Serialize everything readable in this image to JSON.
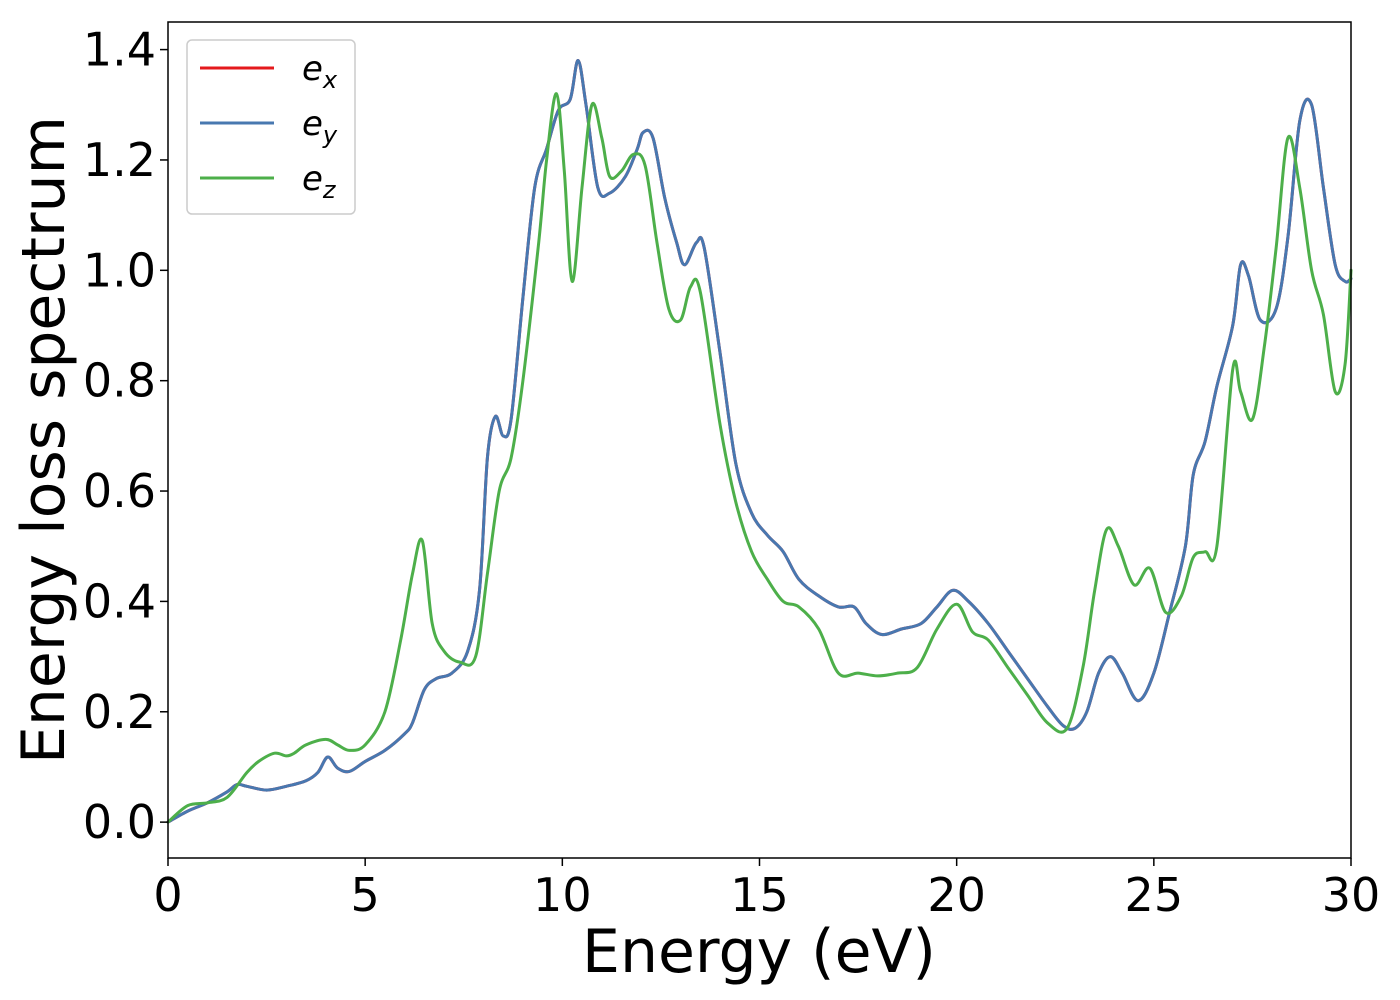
{
  "chart_data": {
    "type": "line",
    "xlabel": "Energy (eV)",
    "ylabel": "Energy loss spectrum",
    "xlim": [
      0,
      30
    ],
    "ylim": [
      -0.065,
      1.45
    ],
    "xticks": [
      0,
      5,
      10,
      15,
      20,
      25,
      30
    ],
    "yticks": [
      0.0,
      0.2,
      0.4,
      0.6,
      0.8,
      1.0,
      1.2,
      1.4
    ],
    "xtick_labels": [
      "0",
      "5",
      "10",
      "15",
      "20",
      "25",
      "30"
    ],
    "ytick_labels": [
      "0.0",
      "0.2",
      "0.4",
      "0.6",
      "0.8",
      "1.0",
      "1.2",
      "1.4"
    ],
    "grid": false,
    "legend_position": "top-left",
    "series": [
      {
        "name": "e",
        "sub": "x",
        "color": "#e41a1c",
        "x": [
          0,
          0.5,
          1,
          1.5,
          1.75,
          2,
          2.5,
          3,
          3.5,
          3.8,
          4.05,
          4.3,
          4.6,
          5,
          5.5,
          6,
          6.2,
          6.5,
          6.8,
          7.2,
          7.6,
          7.9,
          8.1,
          8.3,
          8.5,
          8.7,
          9,
          9.3,
          9.6,
          9.9,
          10.2,
          10.4,
          10.6,
          10.9,
          11.2,
          11.6,
          11.9,
          12.05,
          12.3,
          12.6,
          12.9,
          13.1,
          13.4,
          13.6,
          14,
          14.4,
          14.8,
          15.2,
          15.6,
          16,
          16.5,
          17,
          17.4,
          17.7,
          18.1,
          18.6,
          19.1,
          19.5,
          19.9,
          20.3,
          20.8,
          21.3,
          21.8,
          22.3,
          22.7,
          23,
          23.3,
          23.6,
          23.9,
          24.2,
          24.6,
          25,
          25.4,
          25.8,
          26,
          26.3,
          26.6,
          27,
          27.2,
          27.4,
          27.7,
          28.1,
          28.4,
          28.7,
          29,
          29.3,
          29.6,
          29.85,
          30
        ],
        "y": [
          0,
          0.02,
          0.035,
          0.055,
          0.068,
          0.065,
          0.058,
          0.065,
          0.075,
          0.09,
          0.118,
          0.098,
          0.092,
          0.11,
          0.13,
          0.16,
          0.18,
          0.24,
          0.26,
          0.27,
          0.31,
          0.42,
          0.66,
          0.735,
          0.7,
          0.73,
          0.95,
          1.15,
          1.22,
          1.29,
          1.31,
          1.38,
          1.3,
          1.15,
          1.14,
          1.17,
          1.22,
          1.25,
          1.24,
          1.13,
          1.05,
          1.01,
          1.05,
          1.04,
          0.85,
          0.65,
          0.56,
          0.52,
          0.49,
          0.44,
          0.41,
          0.39,
          0.39,
          0.36,
          0.34,
          0.35,
          0.36,
          0.39,
          0.42,
          0.4,
          0.36,
          0.31,
          0.26,
          0.21,
          0.175,
          0.17,
          0.2,
          0.27,
          0.3,
          0.27,
          0.22,
          0.27,
          0.38,
          0.5,
          0.63,
          0.69,
          0.79,
          0.9,
          1.01,
          0.99,
          0.91,
          0.93,
          1.06,
          1.27,
          1.3,
          1.15,
          1.01,
          0.98,
          0.985
        ]
      },
      {
        "name": "e",
        "sub": "y",
        "color": "#4878b0",
        "x": [
          0,
          0.5,
          1,
          1.5,
          1.75,
          2,
          2.5,
          3,
          3.5,
          3.8,
          4.05,
          4.3,
          4.6,
          5,
          5.5,
          6,
          6.2,
          6.5,
          6.8,
          7.2,
          7.6,
          7.9,
          8.1,
          8.3,
          8.5,
          8.7,
          9,
          9.3,
          9.6,
          9.9,
          10.2,
          10.4,
          10.6,
          10.9,
          11.2,
          11.6,
          11.9,
          12.05,
          12.3,
          12.6,
          12.9,
          13.1,
          13.4,
          13.6,
          14,
          14.4,
          14.8,
          15.2,
          15.6,
          16,
          16.5,
          17,
          17.4,
          17.7,
          18.1,
          18.6,
          19.1,
          19.5,
          19.9,
          20.3,
          20.8,
          21.3,
          21.8,
          22.3,
          22.7,
          23,
          23.3,
          23.6,
          23.9,
          24.2,
          24.6,
          25,
          25.4,
          25.8,
          26,
          26.3,
          26.6,
          27,
          27.2,
          27.4,
          27.7,
          28.1,
          28.4,
          28.7,
          29,
          29.3,
          29.6,
          29.85,
          30
        ],
        "y": [
          0,
          0.02,
          0.035,
          0.055,
          0.068,
          0.065,
          0.058,
          0.065,
          0.075,
          0.09,
          0.118,
          0.098,
          0.092,
          0.11,
          0.13,
          0.16,
          0.18,
          0.24,
          0.26,
          0.27,
          0.31,
          0.42,
          0.66,
          0.735,
          0.7,
          0.73,
          0.95,
          1.15,
          1.22,
          1.29,
          1.31,
          1.38,
          1.3,
          1.15,
          1.14,
          1.17,
          1.22,
          1.25,
          1.24,
          1.13,
          1.05,
          1.01,
          1.05,
          1.04,
          0.85,
          0.65,
          0.56,
          0.52,
          0.49,
          0.44,
          0.41,
          0.39,
          0.39,
          0.36,
          0.34,
          0.35,
          0.36,
          0.39,
          0.42,
          0.4,
          0.36,
          0.31,
          0.26,
          0.21,
          0.175,
          0.17,
          0.2,
          0.27,
          0.3,
          0.27,
          0.22,
          0.27,
          0.38,
          0.5,
          0.63,
          0.69,
          0.79,
          0.9,
          1.01,
          0.99,
          0.91,
          0.93,
          1.06,
          1.27,
          1.3,
          1.15,
          1.01,
          0.98,
          0.985
        ]
      },
      {
        "name": "e",
        "sub": "z",
        "color": "#4daf4a",
        "x": [
          0,
          0.5,
          1,
          1.5,
          2,
          2.3,
          2.7,
          3,
          3.2,
          3.5,
          4,
          4.3,
          4.6,
          5,
          5.5,
          5.9,
          6.2,
          6.45,
          6.7,
          7,
          7.4,
          7.8,
          8.1,
          8.4,
          8.7,
          9,
          9.4,
          9.6,
          9.85,
          10.05,
          10.25,
          10.5,
          10.75,
          11,
          11.2,
          11.5,
          11.8,
          12.1,
          12.4,
          12.7,
          13,
          13.25,
          13.5,
          14,
          14.4,
          14.8,
          15.2,
          15.6,
          16,
          16.5,
          17,
          17.5,
          18,
          18.5,
          19,
          19.5,
          20,
          20.4,
          20.8,
          21.3,
          21.8,
          22.3,
          22.8,
          23.2,
          23.5,
          23.8,
          24.1,
          24.5,
          24.9,
          25.3,
          25.7,
          26,
          26.3,
          26.6,
          27,
          27.2,
          27.5,
          27.8,
          28.1,
          28.4,
          28.7,
          29,
          29.3,
          29.6,
          29.85,
          30
        ],
        "y": [
          0,
          0.03,
          0.035,
          0.045,
          0.09,
          0.11,
          0.125,
          0.12,
          0.125,
          0.14,
          0.15,
          0.14,
          0.13,
          0.14,
          0.2,
          0.33,
          0.45,
          0.51,
          0.36,
          0.31,
          0.29,
          0.3,
          0.45,
          0.6,
          0.66,
          0.8,
          1.05,
          1.2,
          1.32,
          1.18,
          0.98,
          1.15,
          1.3,
          1.24,
          1.17,
          1.18,
          1.21,
          1.19,
          1.05,
          0.93,
          0.91,
          0.97,
          0.96,
          0.72,
          0.58,
          0.49,
          0.44,
          0.4,
          0.39,
          0.35,
          0.27,
          0.27,
          0.265,
          0.27,
          0.28,
          0.35,
          0.395,
          0.345,
          0.33,
          0.28,
          0.23,
          0.18,
          0.17,
          0.28,
          0.42,
          0.53,
          0.5,
          0.43,
          0.46,
          0.38,
          0.41,
          0.48,
          0.49,
          0.5,
          0.82,
          0.78,
          0.73,
          0.86,
          1.04,
          1.24,
          1.15,
          1.0,
          0.92,
          0.78,
          0.83,
          1.0
        ]
      }
    ]
  }
}
